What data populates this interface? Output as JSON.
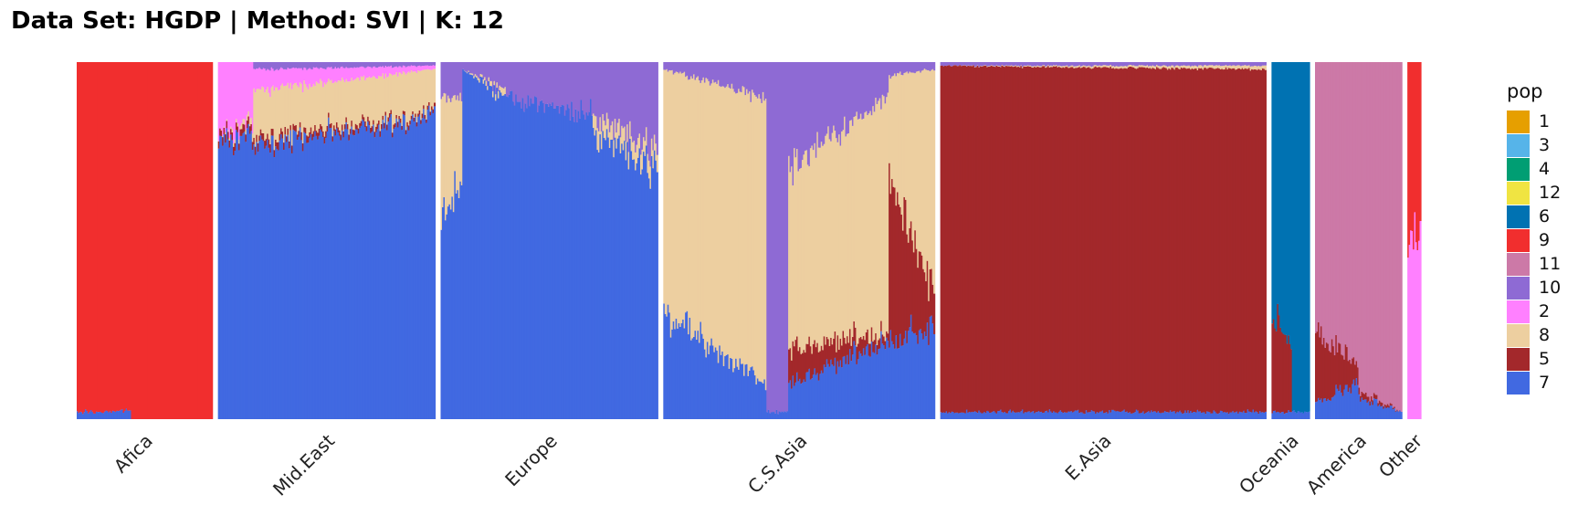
{
  "chart_data": {
    "type": "bar",
    "stacked": true,
    "title": "Data Set: HGDP | Method: SVI | K: 12",
    "xlabel": "",
    "ylabel": "",
    "ylim": [
      0,
      1
    ],
    "grid": false,
    "legend": {
      "title": "pop",
      "position": "right",
      "entries": [
        {
          "name": "1",
          "color": "#E69F00"
        },
        {
          "name": "3",
          "color": "#56B4E9"
        },
        {
          "name": "4",
          "color": "#009E73"
        },
        {
          "name": "12",
          "color": "#F0E442"
        },
        {
          "name": "6",
          "color": "#0072B2"
        },
        {
          "name": "9",
          "color": "#F12E2E"
        },
        {
          "name": "11",
          "color": "#CC79A7"
        },
        {
          "name": "10",
          "color": "#8E6AD4"
        },
        {
          "name": "2",
          "color": "#FF80FF"
        },
        {
          "name": "8",
          "color": "#EDCFA0"
        },
        {
          "name": "5",
          "color": "#A3282B"
        },
        {
          "name": "7",
          "color": "#4169E1"
        }
      ]
    },
    "stack_order_bottom_to_top": [
      "7",
      "5",
      "8",
      "2",
      "10",
      "11",
      "9",
      "6",
      "12",
      "4",
      "3",
      "1"
    ],
    "categories": [
      "Afica",
      "Mid.East",
      "Europe",
      "C.S.Asia",
      "E.Asia",
      "Oceania",
      "America",
      "Other"
    ],
    "panels": [
      {
        "name": "Afica",
        "individuals": 100,
        "segments": [
          {
            "from": 0.0,
            "to": 0.18,
            "start": {
              "7": 0.02,
              "9": 0.98
            },
            "end": {
              "7": 0.02,
              "9": 0.98
            }
          },
          {
            "from": 0.18,
            "to": 0.4,
            "start": {
              "7": 0.02,
              "9": 0.98
            },
            "end": {
              "7": 0.02,
              "9": 0.8
            }
          },
          {
            "from": 0.4,
            "to": 1.0,
            "start": {
              "7": 0.0,
              "9": 0.8
            },
            "end": {
              "7": 0.0,
              "9": 0.98
            }
          }
        ]
      },
      {
        "name": "Mid.East",
        "individuals": 160,
        "segments": [
          {
            "from": 0.0,
            "to": 0.16,
            "start": {
              "7": 0.78,
              "5": 0.02,
              "8": 0.0,
              "2": 0.2
            },
            "end": {
              "7": 0.78,
              "5": 0.02,
              "8": 0.02,
              "2": 0.16
            }
          },
          {
            "from": 0.16,
            "to": 1.0,
            "start": {
              "7": 0.77,
              "5": 0.02,
              "8": 0.13,
              "2": 0.06,
              "10": 0.02
            },
            "end": {
              "7": 0.84,
              "5": 0.01,
              "8": 0.12,
              "2": 0.01,
              "10": 0.01
            }
          }
        ]
      },
      {
        "name": "Europe",
        "individuals": 160,
        "segments": [
          {
            "from": 0.0,
            "to": 0.1,
            "start": {
              "7": 0.55,
              "8": 0.35,
              "10": 0.1
            },
            "end": {
              "7": 0.68,
              "8": 0.22,
              "10": 0.1
            }
          },
          {
            "from": 0.1,
            "to": 0.3,
            "start": {
              "7": 0.98,
              "8": 0.0,
              "10": 0.02
            },
            "end": {
              "7": 0.9,
              "8": 0.02,
              "10": 0.08
            }
          },
          {
            "from": 0.3,
            "to": 0.7,
            "start": {
              "7": 0.9,
              "8": 0.0,
              "10": 0.1
            },
            "end": {
              "7": 0.86,
              "8": 0.0,
              "10": 0.14
            }
          },
          {
            "from": 0.7,
            "to": 1.0,
            "start": {
              "7": 0.8,
              "8": 0.05,
              "10": 0.15
            },
            "end": {
              "7": 0.7,
              "8": 0.05,
              "10": 0.25
            }
          }
        ]
      },
      {
        "name": "C.S.Asia",
        "individuals": 200,
        "segments": [
          {
            "from": 0.0,
            "to": 0.38,
            "start": {
              "7": 0.3,
              "5": 0.0,
              "8": 0.68,
              "10": 0.02
            },
            "end": {
              "7": 0.1,
              "5": 0.0,
              "8": 0.8,
              "10": 0.1
            }
          },
          {
            "from": 0.38,
            "to": 0.46,
            "start": {
              "7": 0.02,
              "5": 0.0,
              "8": 0.0,
              "10": 0.98
            },
            "end": {
              "7": 0.02,
              "5": 0.0,
              "8": 0.0,
              "10": 0.98
            }
          },
          {
            "from": 0.46,
            "to": 0.83,
            "start": {
              "7": 0.1,
              "5": 0.1,
              "8": 0.5,
              "10": 0.3
            },
            "end": {
              "7": 0.22,
              "5": 0.02,
              "8": 0.66,
              "10": 0.1
            }
          },
          {
            "from": 0.83,
            "to": 1.0,
            "start": {
              "7": 0.22,
              "5": 0.46,
              "8": 0.28,
              "10": 0.04
            },
            "end": {
              "7": 0.25,
              "5": 0.1,
              "8": 0.63,
              "10": 0.02
            }
          }
        ]
      },
      {
        "name": "E.Asia",
        "individuals": 240,
        "segments": [
          {
            "from": 0.0,
            "to": 1.0,
            "start": {
              "7": 0.02,
              "5": 0.97,
              "8": 0.0,
              "10": 0.01
            },
            "end": {
              "7": 0.02,
              "5": 0.96,
              "8": 0.01,
              "10": 0.01
            }
          }
        ]
      },
      {
        "name": "Oceania",
        "individuals": 28,
        "segments": [
          {
            "from": 0.0,
            "to": 0.55,
            "start": {
              "7": 0.02,
              "5": 0.25,
              "6": 0.73
            },
            "end": {
              "7": 0.02,
              "5": 0.2,
              "6": 0.78
            }
          },
          {
            "from": 0.55,
            "to": 1.0,
            "start": {
              "7": 0.02,
              "5": 0.0,
              "6": 0.98
            },
            "end": {
              "7": 0.02,
              "5": 0.0,
              "6": 0.98
            }
          }
        ]
      },
      {
        "name": "America",
        "individuals": 64,
        "segments": [
          {
            "from": 0.0,
            "to": 0.5,
            "start": {
              "7": 0.05,
              "5": 0.2,
              "11": 0.75
            },
            "end": {
              "7": 0.1,
              "5": 0.05,
              "11": 0.85
            }
          },
          {
            "from": 0.5,
            "to": 1.0,
            "start": {
              "7": 0.06,
              "5": 0.02,
              "11": 0.92
            },
            "end": {
              "7": 0.02,
              "5": 0.0,
              "11": 0.98
            }
          }
        ]
      },
      {
        "name": "Other",
        "individuals": 10,
        "segments": [
          {
            "from": 0.0,
            "to": 1.0,
            "start": {
              "9": 0.5,
              "2": 0.5
            },
            "end": {
              "9": 0.5,
              "2": 0.5
            }
          }
        ]
      }
    ]
  }
}
